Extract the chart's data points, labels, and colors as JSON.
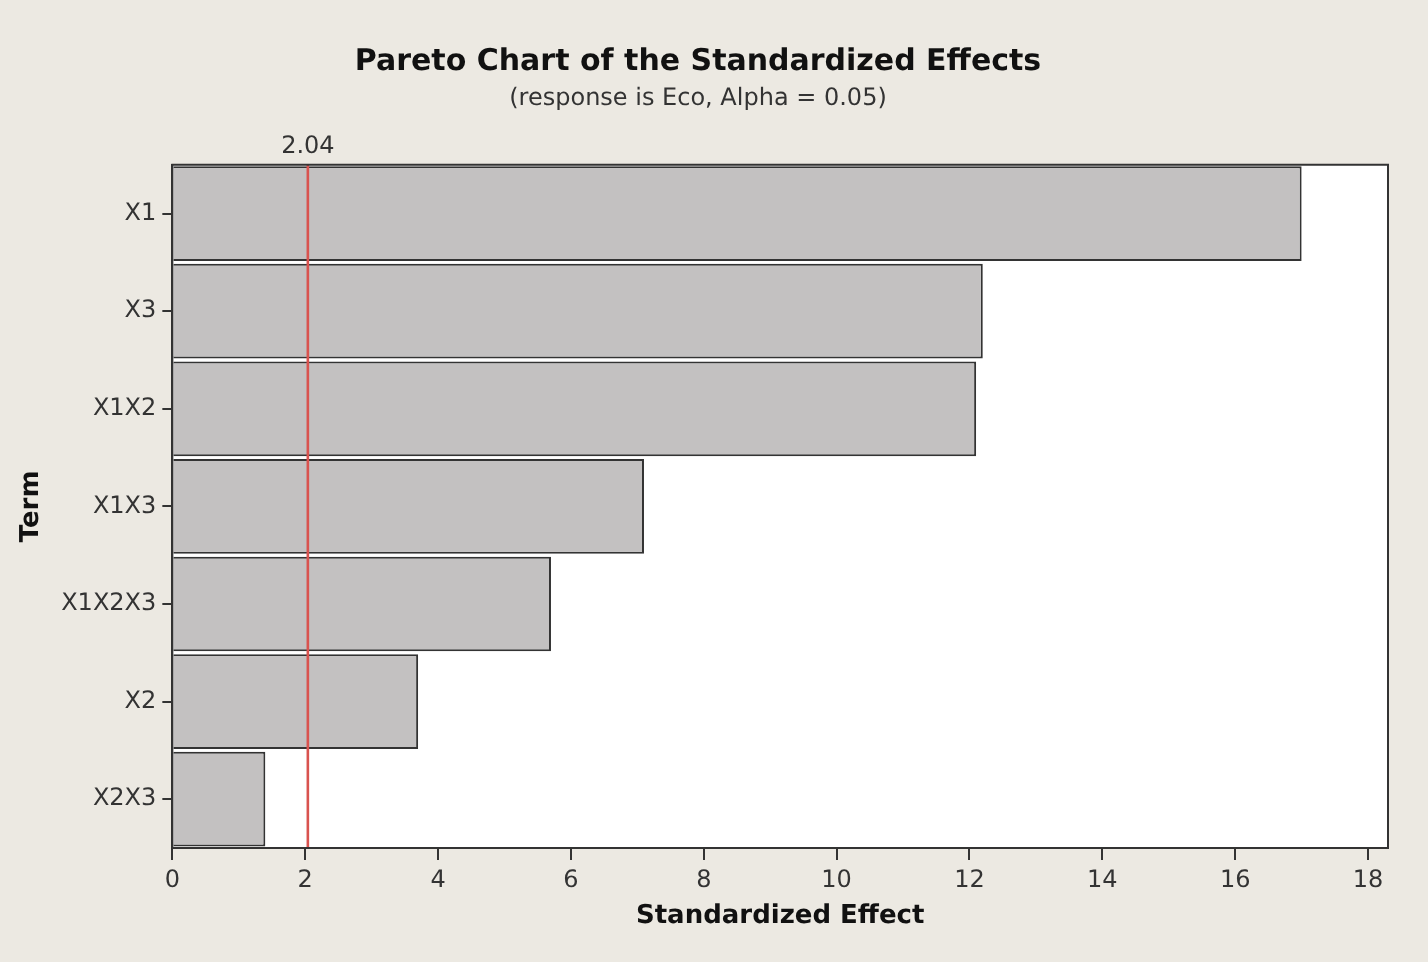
{
  "chart_data": {
    "type": "bar",
    "orientation": "horizontal",
    "title": "Pareto Chart of the Standardized Effects",
    "subtitle": "(response is Eco, Alpha = 0.05)",
    "xlabel": "Standardized Effect",
    "ylabel": "Term",
    "categories": [
      "X1",
      "X3",
      "X1X2",
      "X1X3",
      "X1X2X3",
      "X2",
      "X2X3"
    ],
    "values": [
      17.0,
      12.2,
      12.1,
      7.1,
      5.7,
      3.7,
      1.4
    ],
    "color": "#c3c1c1",
    "xlim": [
      0,
      18.3
    ],
    "xticks": [
      0,
      2,
      4,
      6,
      8,
      10,
      12,
      14,
      16,
      18
    ],
    "ref_lines": [
      {
        "axis": "x",
        "value": 2.04,
        "label": "2.04",
        "color": "#d9534f"
      }
    ],
    "grid": false,
    "legend": false
  }
}
